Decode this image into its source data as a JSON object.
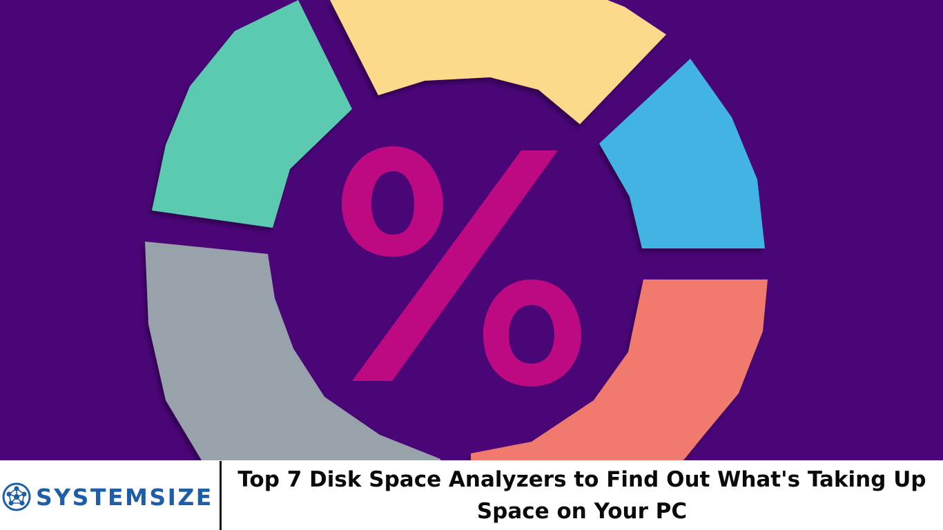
{
  "hero": {
    "symbol": "%",
    "colors": {
      "background": "#4a0677",
      "teal": "#5ccab1",
      "yellow": "#fcd98b",
      "blue": "#43b4e3",
      "salmon": "#f17a6e",
      "gray": "#97a2ab",
      "magenta": "#bd0a83"
    }
  },
  "brand": {
    "name": "SYSTEMSIZE",
    "color": "#1d5ea7",
    "icon": "network-globe-icon"
  },
  "headline": "Top 7 Disk Space Analyzers to Find Out What's Taking Up Space on Your PC"
}
